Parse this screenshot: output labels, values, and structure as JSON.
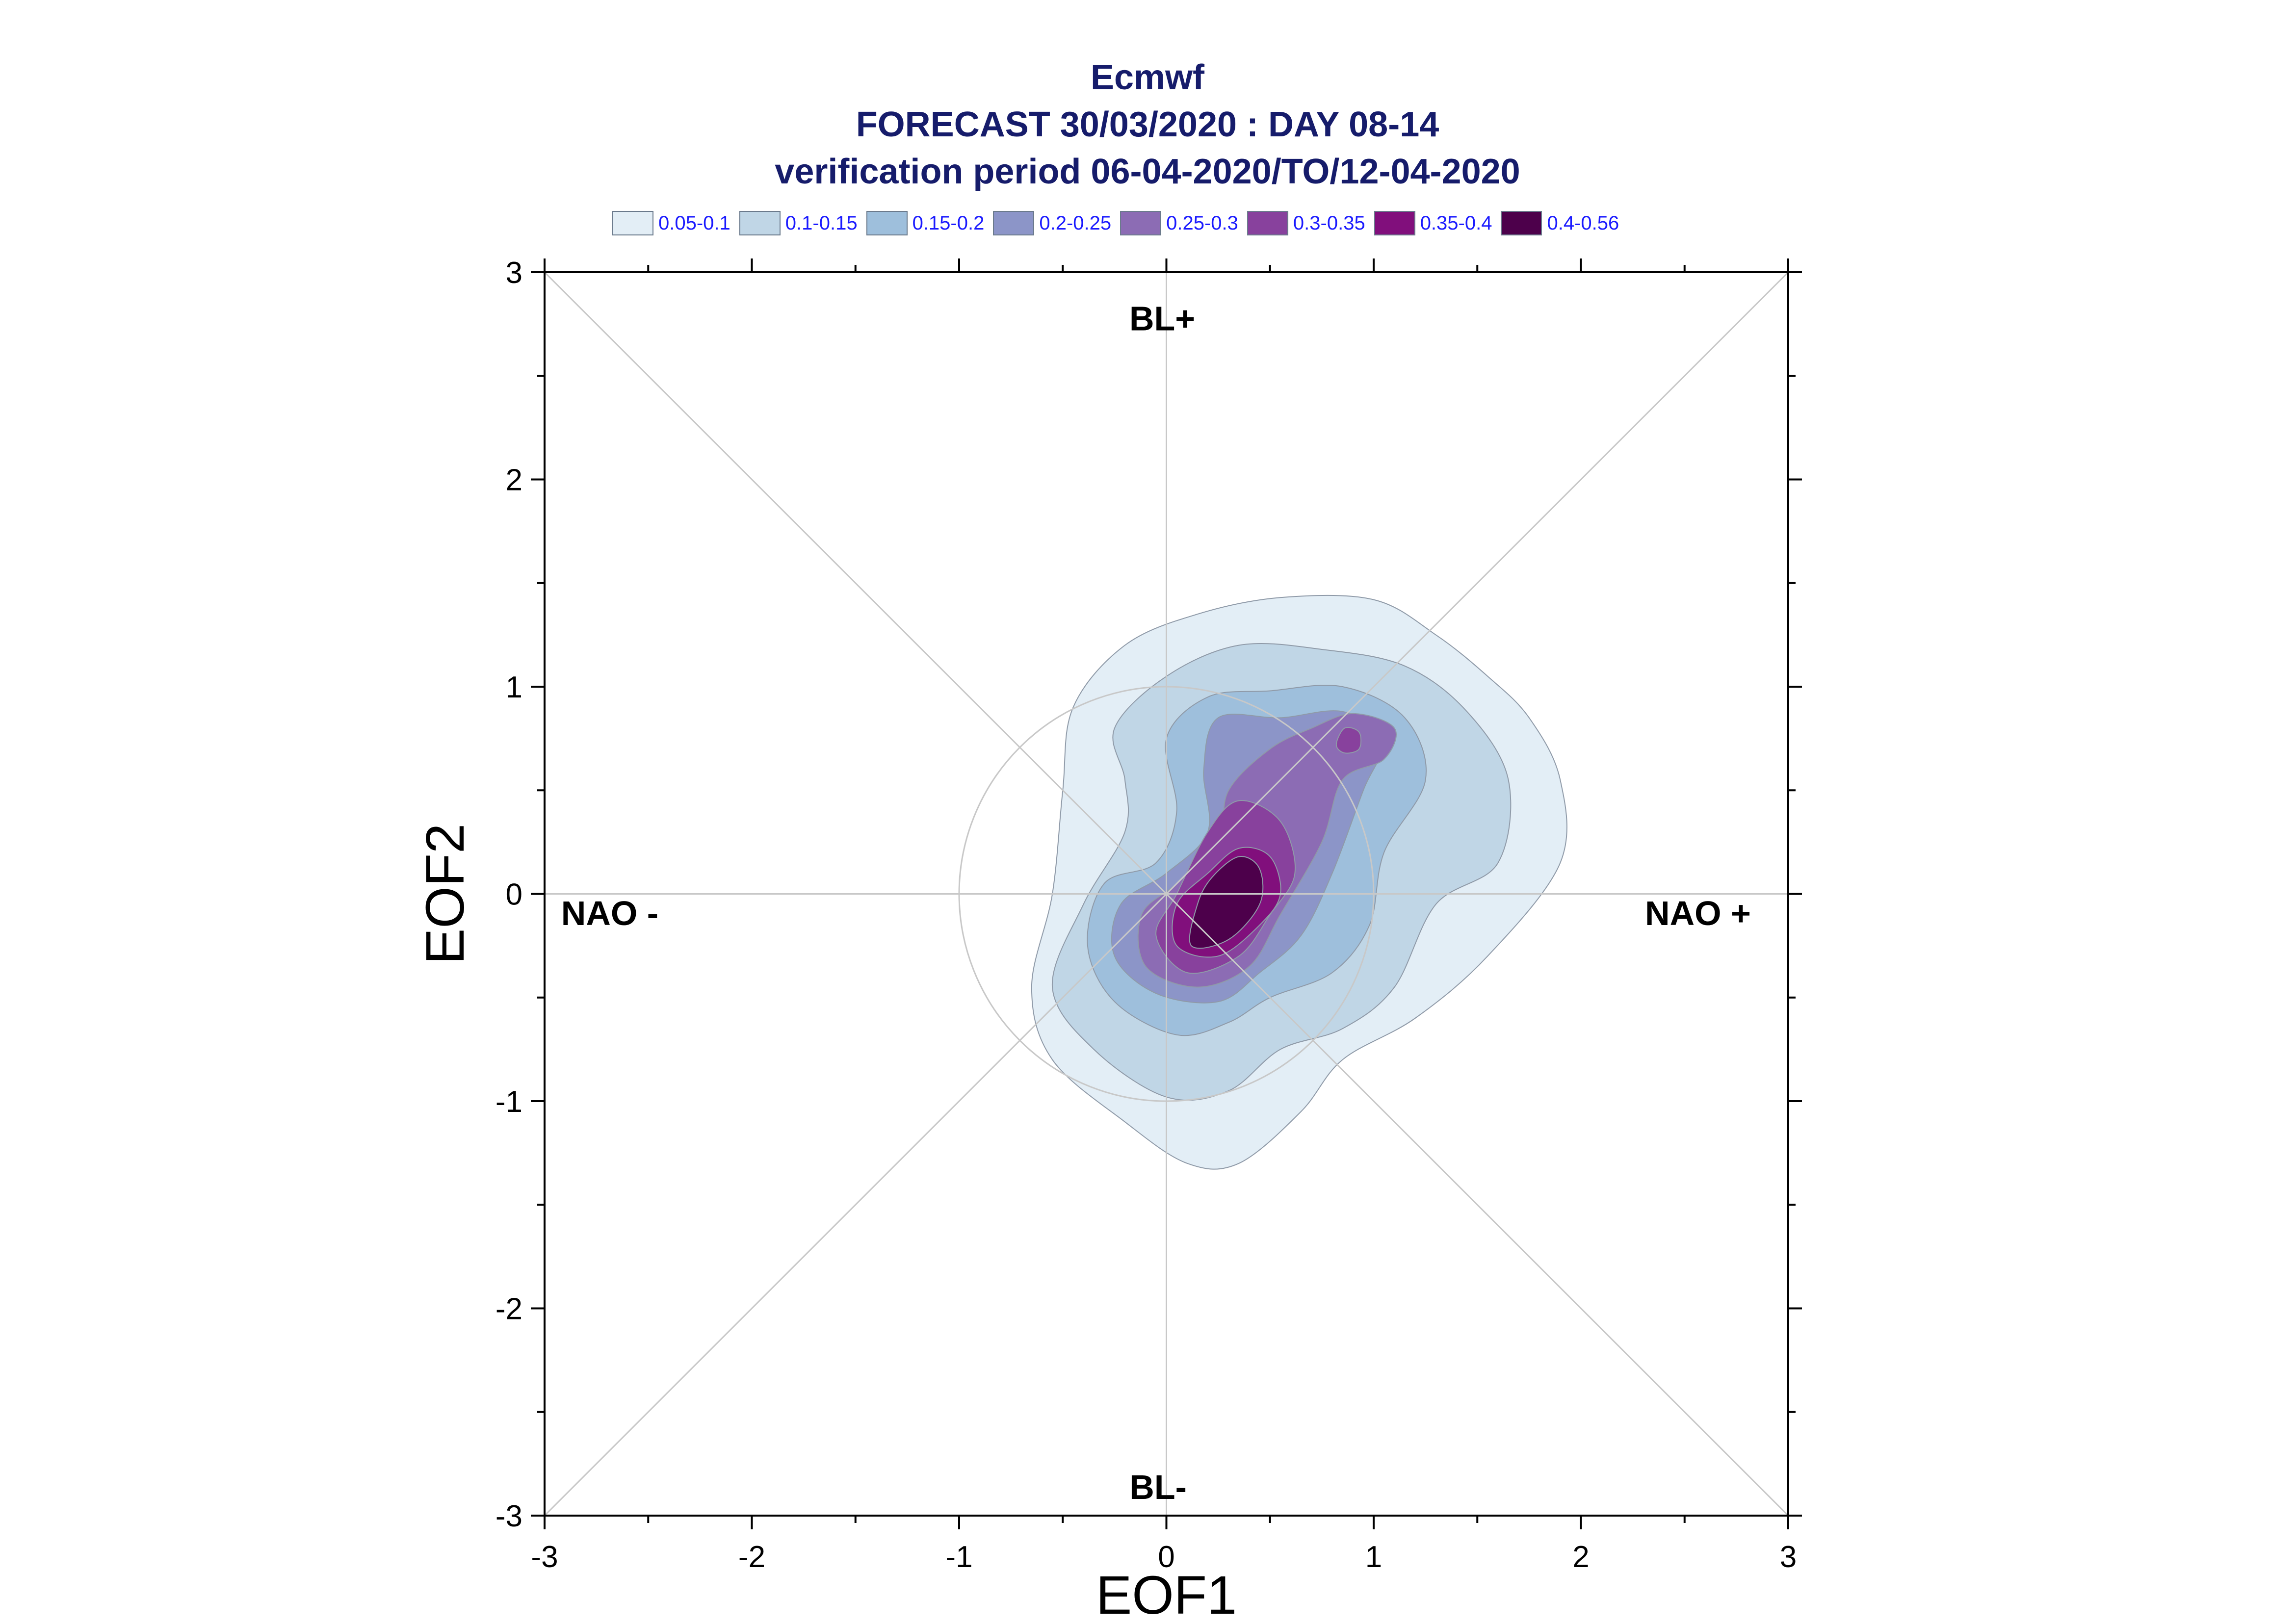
{
  "title": {
    "line1": "Ecmwf",
    "line2": "FORECAST 30/03/2020 : DAY 08-14",
    "line3": "verification period 06-04-2020/TO/12-04-2020"
  },
  "legend": [
    {
      "label": "0.05-0.1",
      "color": "#e3eef6"
    },
    {
      "label": "0.1-0.15",
      "color": "#c0d6e6"
    },
    {
      "label": "0.15-0.2",
      "color": "#9ebfdc"
    },
    {
      "label": "0.2-0.25",
      "color": "#8c95c8"
    },
    {
      "label": "0.25-0.3",
      "color": "#8c6cb4"
    },
    {
      "label": "0.3-0.35",
      "color": "#88419d"
    },
    {
      "label": "0.35-0.4",
      "color": "#810f7c"
    },
    {
      "label": "0.4-0.56",
      "color": "#4d004b"
    }
  ],
  "regime_labels": {
    "top": "BL+",
    "bottom": "BL-",
    "left": "NAO -",
    "right": "NAO +"
  },
  "chart_data": {
    "type": "contour",
    "xlabel": "EOF1",
    "ylabel": "EOF2",
    "xlim": [
      -3,
      3
    ],
    "ylim": [
      -3,
      3
    ],
    "xticks": [
      "-3",
      "-2",
      "-1",
      "0",
      "1",
      "2",
      "3"
    ],
    "yticks": [
      "-3",
      "-2",
      "-1",
      "0",
      "1",
      "2",
      "3"
    ],
    "reference_circle_radius": 1,
    "levels": [
      {
        "range": "0.05-0.1",
        "outline": [
          [
            -0.55,
            0.0
          ],
          [
            -0.65,
            -0.45
          ],
          [
            -0.55,
            -0.8
          ],
          [
            -0.2,
            -1.1
          ],
          [
            0.1,
            -1.3
          ],
          [
            0.35,
            -1.3
          ],
          [
            0.65,
            -1.05
          ],
          [
            0.85,
            -0.8
          ],
          [
            1.2,
            -0.6
          ],
          [
            1.55,
            -0.3
          ],
          [
            1.9,
            0.15
          ],
          [
            1.9,
            0.55
          ],
          [
            1.75,
            0.85
          ],
          [
            1.55,
            1.05
          ],
          [
            1.3,
            1.25
          ],
          [
            1.0,
            1.42
          ],
          [
            0.55,
            1.43
          ],
          [
            0.15,
            1.35
          ],
          [
            -0.2,
            1.2
          ],
          [
            -0.45,
            0.9
          ],
          [
            -0.5,
            0.5
          ]
        ]
      },
      {
        "range": "0.1-0.15",
        "outline": [
          [
            -0.2,
            0.3
          ],
          [
            -0.4,
            -0.05
          ],
          [
            -0.55,
            -0.45
          ],
          [
            -0.35,
            -0.75
          ],
          [
            0.0,
            -0.98
          ],
          [
            0.3,
            -0.95
          ],
          [
            0.55,
            -0.75
          ],
          [
            0.85,
            -0.65
          ],
          [
            1.1,
            -0.45
          ],
          [
            1.3,
            -0.05
          ],
          [
            1.6,
            0.15
          ],
          [
            1.65,
            0.55
          ],
          [
            1.45,
            0.88
          ],
          [
            1.15,
            1.1
          ],
          [
            0.75,
            1.18
          ],
          [
            0.35,
            1.2
          ],
          [
            0.0,
            1.05
          ],
          [
            -0.25,
            0.8
          ],
          [
            -0.2,
            0.55
          ]
        ]
      },
      {
        "range": "0.15-0.2",
        "outline": [
          [
            -0.05,
            0.15
          ],
          [
            -0.3,
            0.05
          ],
          [
            -0.38,
            -0.25
          ],
          [
            -0.25,
            -0.52
          ],
          [
            0.05,
            -0.68
          ],
          [
            0.3,
            -0.62
          ],
          [
            0.5,
            -0.5
          ],
          [
            0.8,
            -0.38
          ],
          [
            0.98,
            -0.15
          ],
          [
            1.05,
            0.2
          ],
          [
            1.25,
            0.55
          ],
          [
            1.15,
            0.85
          ],
          [
            0.85,
            1.0
          ],
          [
            0.5,
            0.98
          ],
          [
            0.2,
            0.95
          ],
          [
            0.0,
            0.75
          ],
          [
            0.05,
            0.4
          ]
        ]
      },
      {
        "range": "0.2-0.25",
        "outline": [
          [
            0.0,
            0.1
          ],
          [
            -0.22,
            -0.05
          ],
          [
            -0.25,
            -0.3
          ],
          [
            -0.05,
            -0.48
          ],
          [
            0.25,
            -0.52
          ],
          [
            0.45,
            -0.38
          ],
          [
            0.65,
            -0.2
          ],
          [
            0.8,
            0.1
          ],
          [
            0.95,
            0.5
          ],
          [
            1.05,
            0.75
          ],
          [
            0.85,
            0.88
          ],
          [
            0.55,
            0.85
          ],
          [
            0.25,
            0.85
          ],
          [
            0.18,
            0.6
          ],
          [
            0.2,
            0.3
          ]
        ]
      },
      {
        "range": "0.25-0.3",
        "outline": [
          [
            0.05,
            0.05
          ],
          [
            -0.12,
            -0.1
          ],
          [
            -0.1,
            -0.35
          ],
          [
            0.15,
            -0.45
          ],
          [
            0.4,
            -0.35
          ],
          [
            0.55,
            -0.1
          ],
          [
            0.75,
            0.25
          ],
          [
            0.85,
            0.55
          ],
          [
            1.05,
            0.65
          ],
          [
            1.1,
            0.8
          ],
          [
            0.9,
            0.87
          ],
          [
            0.7,
            0.8
          ],
          [
            0.5,
            0.7
          ],
          [
            0.3,
            0.5
          ],
          [
            0.25,
            0.25
          ]
        ]
      },
      {
        "range": "0.3-0.35",
        "outline": [
          [
            0.05,
            0.0
          ],
          [
            -0.05,
            -0.2
          ],
          [
            0.1,
            -0.38
          ],
          [
            0.35,
            -0.3
          ],
          [
            0.5,
            -0.1
          ],
          [
            0.62,
            0.1
          ],
          [
            0.55,
            0.35
          ],
          [
            0.35,
            0.45
          ],
          [
            0.2,
            0.3
          ]
        ]
      },
      {
        "range": "0.35-0.4",
        "outline": [
          [
            0.05,
            -0.05
          ],
          [
            0.05,
            -0.25
          ],
          [
            0.25,
            -0.3
          ],
          [
            0.45,
            -0.15
          ],
          [
            0.55,
            0.0
          ],
          [
            0.5,
            0.18
          ],
          [
            0.35,
            0.22
          ],
          [
            0.2,
            0.1
          ]
        ]
      },
      {
        "range": "0.4-0.56",
        "outline": [
          [
            0.15,
            -0.05
          ],
          [
            0.12,
            -0.25
          ],
          [
            0.3,
            -0.22
          ],
          [
            0.45,
            -0.05
          ],
          [
            0.45,
            0.12
          ],
          [
            0.35,
            0.18
          ],
          [
            0.22,
            0.08
          ]
        ]
      },
      {
        "range": "0.3-0.35",
        "outline": [
          [
            0.82,
            0.72
          ],
          [
            0.86,
            0.8
          ],
          [
            0.93,
            0.78
          ],
          [
            0.93,
            0.7
          ],
          [
            0.86,
            0.68
          ]
        ]
      }
    ]
  }
}
